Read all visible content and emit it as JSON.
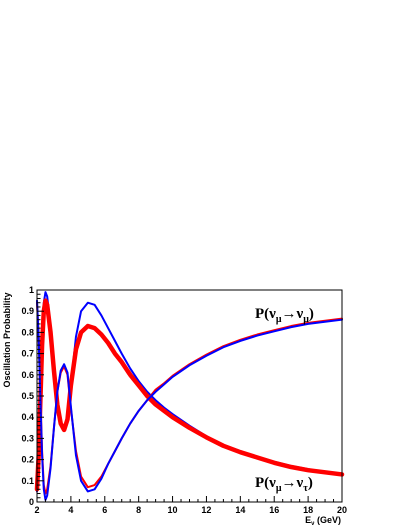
{
  "chart_data": {
    "type": "line",
    "title": "",
    "xlabel": "E, (GeV)",
    "xlabel_parts": {
      "main": "E",
      "sub": "ν",
      "rest": " (GeV)"
    },
    "ylabel": "Oscillation Probability",
    "xlim": [
      2,
      20
    ],
    "ylim": [
      0,
      1
    ],
    "x_ticks": [
      "2",
      "4",
      "6",
      "8",
      "10",
      "12",
      "14",
      "16",
      "18",
      "20"
    ],
    "y_ticks": [
      "0",
      "0.1",
      "0.2",
      "0.3",
      "0.4",
      "0.5",
      "0.6",
      "0.7",
      "0.8",
      "0.9",
      "1"
    ],
    "grid": false,
    "colors": {
      "blue": "#0000ff",
      "red": "#ff0000"
    },
    "labels": {
      "survival": {
        "P": "P",
        "open": "(",
        "nu1": "ν",
        "sub1": "μ",
        "arrow": "→",
        "nu2": "ν",
        "sub2": "μ",
        "close": ")"
      },
      "appearance": {
        "P": "P",
        "open": "(",
        "nu1": "ν",
        "sub1": "μ",
        "arrow": "→",
        "nu2": "ν",
        "sub2": "τ",
        "close": ")"
      }
    },
    "series": [
      {
        "role": "survival",
        "color": "#0000ff",
        "band": false,
        "x": [
          2.0,
          2.1,
          2.2,
          2.3,
          2.4,
          2.5,
          2.6,
          2.8,
          3.0,
          3.2,
          3.4,
          3.6,
          3.8,
          4.0,
          4.3,
          4.6,
          5.0,
          5.4,
          5.8,
          6.2,
          6.6,
          7.0,
          7.5,
          8.0,
          8.5,
          9.0,
          9.5,
          10,
          11,
          12,
          13,
          14,
          15,
          16,
          17,
          18,
          19,
          20
        ],
        "y": [
          0.05,
          0.22,
          0.5,
          0.78,
          0.94,
          0.99,
          0.97,
          0.83,
          0.64,
          0.47,
          0.37,
          0.34,
          0.38,
          0.55,
          0.78,
          0.9,
          0.94,
          0.93,
          0.88,
          0.82,
          0.76,
          0.7,
          0.63,
          0.57,
          0.52,
          0.48,
          0.445,
          0.415,
          0.36,
          0.31,
          0.27,
          0.24,
          0.21,
          0.19,
          0.17,
          0.155,
          0.14,
          0.13
        ]
      },
      {
        "role": "survival",
        "color": "#ff0000",
        "band": true,
        "x": [
          2.0,
          2.1,
          2.2,
          2.3,
          2.4,
          2.5,
          2.6,
          2.8,
          3.0,
          3.2,
          3.4,
          3.6,
          3.8,
          4.0,
          4.3,
          4.6,
          5.0,
          5.4,
          5.8,
          6.2,
          6.6,
          7.0,
          7.5,
          8.0,
          8.5,
          9.0,
          9.5,
          10,
          11,
          12,
          13,
          14,
          15,
          16,
          17,
          18,
          19,
          20
        ],
        "y": [
          0.06,
          0.22,
          0.48,
          0.74,
          0.9,
          0.95,
          0.93,
          0.8,
          0.62,
          0.46,
          0.37,
          0.34,
          0.39,
          0.55,
          0.72,
          0.8,
          0.83,
          0.82,
          0.79,
          0.75,
          0.7,
          0.66,
          0.6,
          0.55,
          0.5,
          0.46,
          0.43,
          0.4,
          0.35,
          0.305,
          0.265,
          0.235,
          0.21,
          0.185,
          0.165,
          0.15,
          0.14,
          0.13
        ]
      },
      {
        "role": "appearance",
        "color": "#ff0000",
        "band": false,
        "x": [
          2.0,
          2.1,
          2.2,
          2.3,
          2.4,
          2.5,
          2.6,
          2.8,
          3.0,
          3.2,
          3.4,
          3.6,
          3.8,
          4.0,
          4.3,
          4.6,
          5.0,
          5.4,
          5.8,
          6.2,
          6.6,
          7.0,
          7.5,
          8.0,
          8.5,
          9.0,
          9.5,
          10,
          11,
          12,
          13,
          14,
          15,
          16,
          17,
          18,
          19,
          20
        ],
        "y": [
          0.94,
          0.78,
          0.5,
          0.24,
          0.08,
          0.04,
          0.06,
          0.17,
          0.35,
          0.52,
          0.61,
          0.64,
          0.6,
          0.44,
          0.24,
          0.12,
          0.07,
          0.08,
          0.12,
          0.18,
          0.24,
          0.3,
          0.37,
          0.43,
          0.48,
          0.53,
          0.56,
          0.595,
          0.65,
          0.695,
          0.735,
          0.765,
          0.79,
          0.81,
          0.83,
          0.845,
          0.855,
          0.865
        ]
      },
      {
        "role": "appearance",
        "color": "#0000ff",
        "band": false,
        "x": [
          2.0,
          2.1,
          2.2,
          2.3,
          2.4,
          2.5,
          2.6,
          2.8,
          3.0,
          3.2,
          3.4,
          3.6,
          3.8,
          4.0,
          4.3,
          4.6,
          5.0,
          5.4,
          5.8,
          6.2,
          6.6,
          7.0,
          7.5,
          8.0,
          8.5,
          9.0,
          9.5,
          10,
          11,
          12,
          13,
          14,
          15,
          16,
          17,
          18,
          19,
          20
        ],
        "y": [
          0.95,
          0.77,
          0.49,
          0.22,
          0.06,
          0.01,
          0.03,
          0.16,
          0.35,
          0.52,
          0.62,
          0.65,
          0.61,
          0.45,
          0.22,
          0.1,
          0.05,
          0.06,
          0.11,
          0.18,
          0.24,
          0.3,
          0.37,
          0.43,
          0.48,
          0.52,
          0.555,
          0.59,
          0.645,
          0.69,
          0.73,
          0.76,
          0.785,
          0.805,
          0.825,
          0.84,
          0.85,
          0.86
        ]
      }
    ]
  }
}
